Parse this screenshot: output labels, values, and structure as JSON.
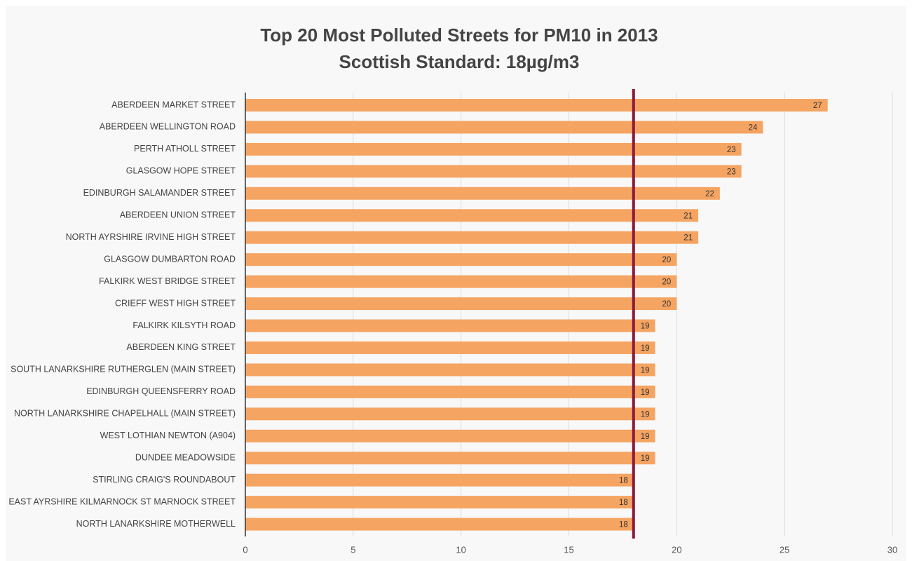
{
  "chart_data": {
    "type": "bar",
    "orientation": "horizontal",
    "title": "Top 20 Most Polluted Streets for PM10 in 2013",
    "subtitle": "Scottish Standard: 18µg/m3",
    "categories": [
      "ABERDEEN MARKET STREET",
      "ABERDEEN WELLINGTON ROAD",
      "PERTH ATHOLL STREET",
      "GLASGOW HOPE STREET",
      "EDINBURGH SALAMANDER STREET",
      "ABERDEEN UNION STREET",
      "NORTH AYRSHIRE IRVINE HIGH STREET",
      "GLASGOW DUMBARTON ROAD",
      "FALKIRK WEST BRIDGE STREET",
      "CRIEFF WEST HIGH STREET",
      "FALKIRK KILSYTH ROAD",
      "ABERDEEN KING STREET",
      "SOUTH LANARKSHIRE RUTHERGLEN (MAIN STREET)",
      "EDINBURGH QUEENSFERRY ROAD",
      "NORTH LANARKSHIRE CHAPELHALL (MAIN STREET)",
      "WEST LOTHIAN NEWTON (A904)",
      "DUNDEE MEADOWSIDE",
      "STIRLING CRAIG'S ROUNDABOUT",
      "EAST AYRSHIRE KILMARNOCK ST MARNOCK STREET",
      "NORTH LANARKSHIRE MOTHERWELL"
    ],
    "values": [
      27,
      24,
      23,
      23,
      22,
      21,
      21,
      20,
      20,
      20,
      19,
      19,
      19,
      19,
      19,
      19,
      19,
      18,
      18,
      18
    ],
    "color": "#f5a462",
    "xlim": [
      0,
      30
    ],
    "xticks": [
      0,
      5,
      10,
      15,
      20,
      25,
      30
    ],
    "grid": true,
    "reference_line": {
      "value": 18,
      "color": "#8b1a3a"
    }
  }
}
